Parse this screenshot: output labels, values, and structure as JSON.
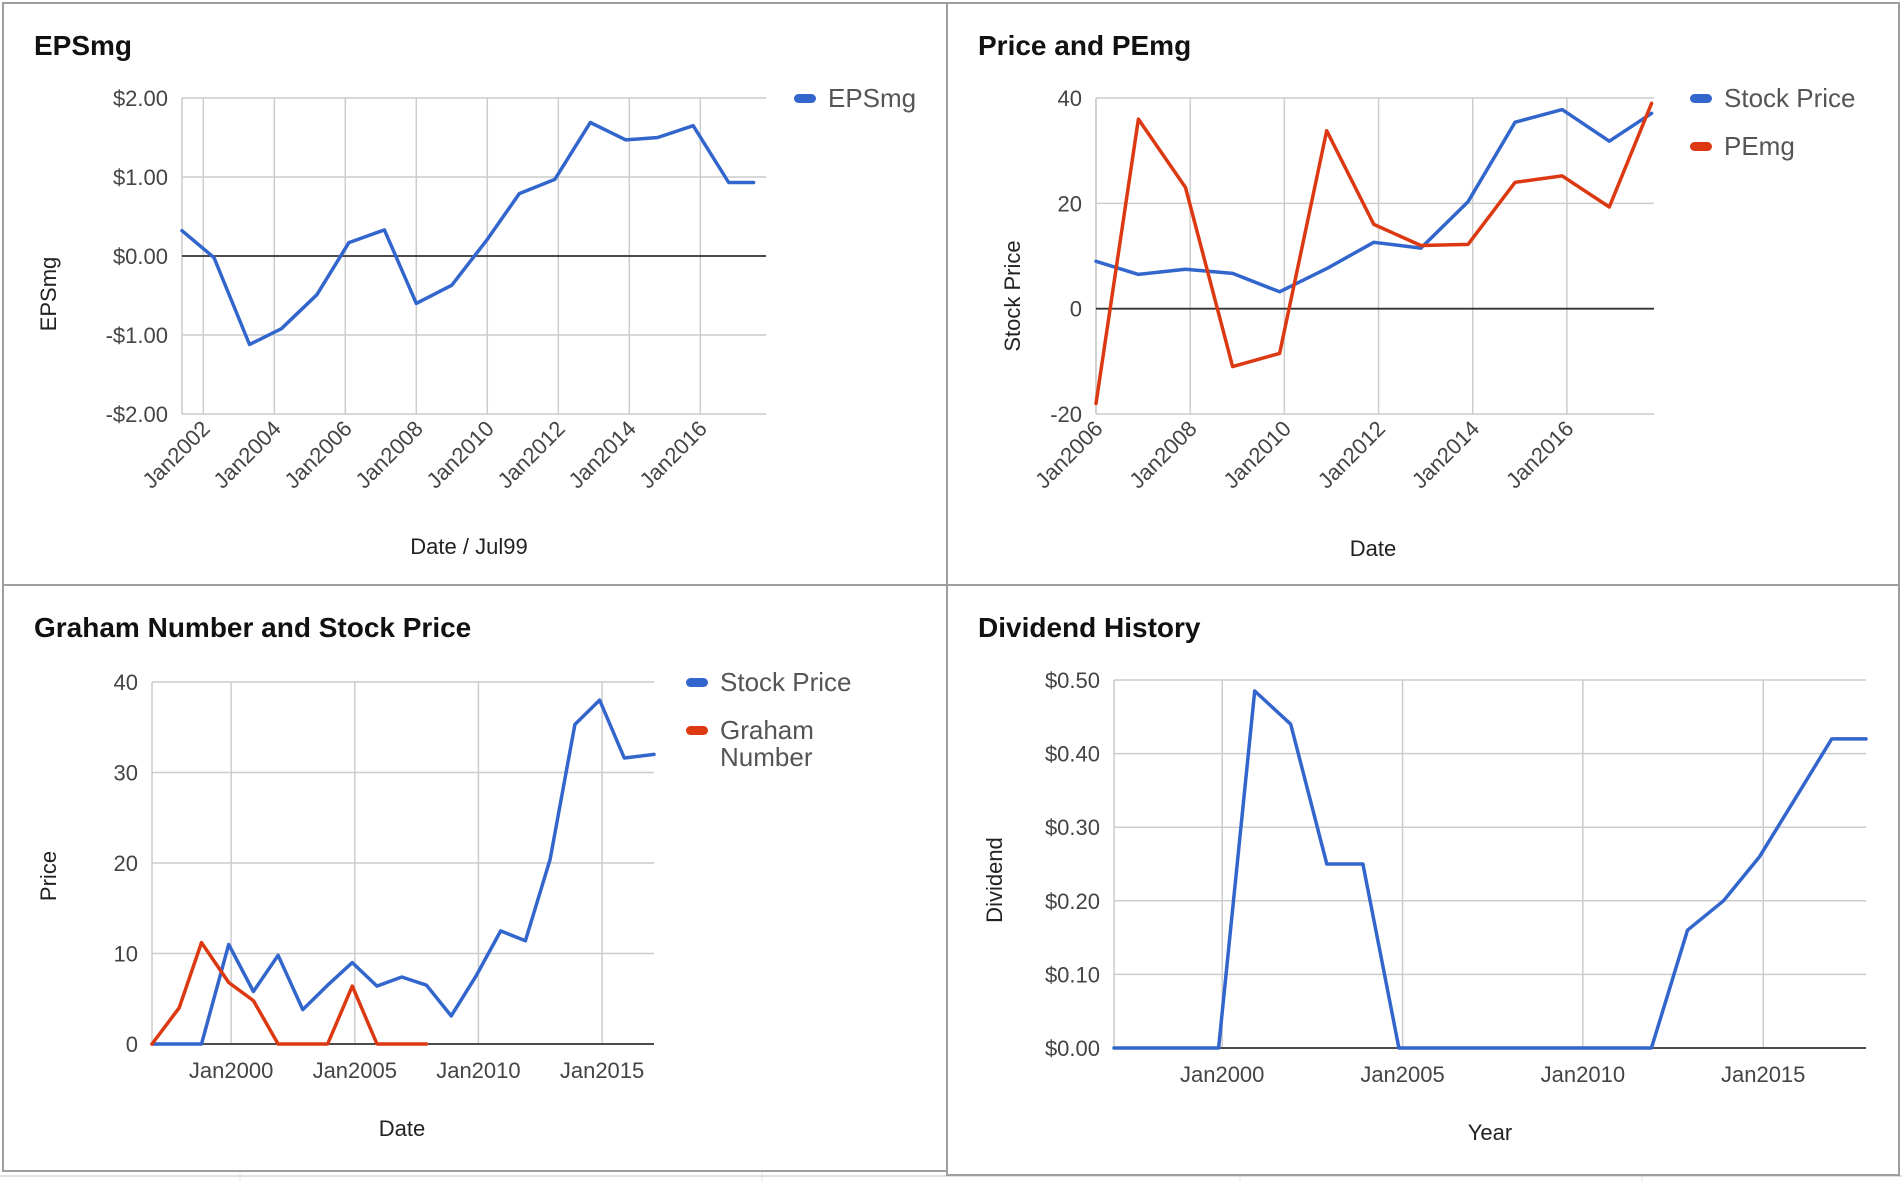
{
  "colors": {
    "blue": "#3366cc",
    "red": "#dc3912",
    "grid": "#cccccc",
    "zero": "#333333",
    "text": "#444444"
  },
  "chart_data": [
    {
      "type": "line",
      "title": "EPSmg",
      "xlabel": "Date / Jul99",
      "ylabel": "EPSmg",
      "ylim": [
        -2,
        2
      ],
      "yticks": [
        -2,
        -1,
        0,
        1,
        2
      ],
      "ytick_labels": [
        "-$2.00",
        "-$1.00",
        "$0.00",
        "$1.00",
        "$2.00"
      ],
      "xlim": [
        2001.4,
        2017.85
      ],
      "xticks": [
        2002,
        2004,
        2006,
        2008,
        2010,
        2012,
        2014,
        2016
      ],
      "xtick_labels": [
        "Jan2002",
        "Jan2004",
        "Jan2006",
        "Jan2008",
        "Jan2010",
        "Jan2012",
        "Jan2014",
        "Jan2016"
      ],
      "x_rotated": true,
      "legend_position": "right",
      "series": [
        {
          "name": "EPSmg",
          "color": "#3366cc",
          "x": [
            2001.4,
            2002.3,
            2003.3,
            2004.2,
            2005.2,
            2006.1,
            2007.1,
            2008.0,
            2009.0,
            2010.0,
            2010.9,
            2011.9,
            2012.9,
            2013.9,
            2014.8,
            2015.8,
            2016.8,
            2017.5
          ],
          "y": [
            0.32,
            -0.02,
            -1.12,
            -0.92,
            -0.49,
            0.17,
            0.33,
            -0.6,
            -0.37,
            0.21,
            0.79,
            0.97,
            1.69,
            1.47,
            1.5,
            1.65,
            0.93,
            0.93
          ]
        }
      ]
    },
    {
      "type": "line",
      "title": "Price and PEmg",
      "xlabel": "Date",
      "ylabel": "Stock Price",
      "ylim": [
        -20,
        40
      ],
      "yticks": [
        -20,
        0,
        20,
        40
      ],
      "ytick_labels": [
        "-20",
        "0",
        "20",
        "40"
      ],
      "xlim": [
        2006.0,
        2017.85
      ],
      "xticks": [
        2006,
        2008,
        2010,
        2012,
        2014,
        2016
      ],
      "xtick_labels": [
        "Jan2006",
        "Jan2008",
        "Jan2010",
        "Jan2012",
        "Jan2014",
        "Jan2016"
      ],
      "x_rotated": true,
      "legend_position": "right",
      "series": [
        {
          "name": "Stock Price",
          "color": "#3366cc",
          "x": [
            2006.0,
            2006.9,
            2007.9,
            2008.9,
            2009.9,
            2010.9,
            2011.9,
            2012.9,
            2013.9,
            2014.9,
            2015.9,
            2016.9,
            2017.8
          ],
          "y": [
            9.0,
            6.5,
            7.5,
            6.7,
            3.2,
            7.6,
            12.6,
            11.5,
            20.3,
            35.4,
            37.8,
            31.8,
            37.1
          ]
        },
        {
          "name": "PEmg",
          "color": "#dc3912",
          "x": [
            2006.0,
            2006.9,
            2007.9,
            2008.9,
            2009.9,
            2010.9,
            2011.9,
            2012.9,
            2013.9,
            2014.9,
            2015.9,
            2016.9,
            2017.8
          ],
          "y": [
            -18.0,
            36.0,
            23.0,
            -11.0,
            -8.5,
            33.8,
            16.0,
            12.0,
            12.2,
            24.0,
            25.2,
            19.3,
            39.0
          ]
        }
      ]
    },
    {
      "type": "line",
      "title": "Graham Number and Stock Price",
      "xlabel": "Date",
      "ylabel": "Price",
      "ylim": [
        0,
        40
      ],
      "yticks": [
        0,
        10,
        20,
        30,
        40
      ],
      "ytick_labels": [
        "0",
        "10",
        "20",
        "30",
        "40"
      ],
      "xlim": [
        1996.8,
        2017.1
      ],
      "xticks": [
        2000,
        2005,
        2010,
        2015
      ],
      "xtick_labels": [
        "Jan2000",
        "Jan2005",
        "Jan2010",
        "Jan2015"
      ],
      "x_rotated": false,
      "legend_position": "right",
      "series": [
        {
          "name": "Stock Price",
          "color": "#3366cc",
          "x": [
            1996.8,
            1998.8,
            1999.9,
            2000.9,
            2001.9,
            2002.9,
            2003.9,
            2004.9,
            2005.9,
            2006.9,
            2007.9,
            2008.9,
            2009.9,
            2010.9,
            2011.9,
            2012.9,
            2013.9,
            2014.9,
            2015.9,
            2017.1
          ],
          "y": [
            0,
            0,
            11.0,
            5.8,
            9.8,
            3.8,
            6.5,
            9.0,
            6.4,
            7.4,
            6.5,
            3.1,
            7.5,
            12.5,
            11.4,
            20.4,
            35.3,
            38.0,
            31.6,
            32.0
          ]
        },
        {
          "name": "Graham Number",
          "color": "#dc3912",
          "x": [
            1996.8,
            1997.9,
            1998.8,
            1999.9,
            2000.9,
            2001.9,
            2002.9,
            2003.9,
            2004.9,
            2005.9,
            2006.9,
            2007.9
          ],
          "y": [
            0,
            4.0,
            11.2,
            6.8,
            4.8,
            0,
            0,
            0,
            6.4,
            0,
            0,
            0
          ]
        }
      ]
    },
    {
      "type": "line",
      "title": "Dividend History",
      "xlabel": "Year",
      "ylabel": "Dividend",
      "ylim": [
        0,
        0.5
      ],
      "yticks": [
        0,
        0.1,
        0.2,
        0.3,
        0.4,
        0.5
      ],
      "ytick_labels": [
        "$0.00",
        "$0.10",
        "$0.20",
        "$0.30",
        "$0.40",
        "$0.50"
      ],
      "xlim": [
        1997.0,
        2017.85
      ],
      "xticks": [
        2000,
        2005,
        2010,
        2015
      ],
      "xtick_labels": [
        "Jan2000",
        "Jan2005",
        "Jan2010",
        "Jan2015"
      ],
      "x_rotated": false,
      "legend_position": "none",
      "series": [
        {
          "name": "",
          "color": "#3366cc",
          "x": [
            1997.0,
            1999.9,
            2000.9,
            2001.9,
            2002.9,
            2003.9,
            2004.9,
            2005.9,
            2006.9,
            2007.9,
            2008.9,
            2009.9,
            2010.9,
            2011.9,
            2012.9,
            2013.9,
            2014.9,
            2015.9,
            2016.9,
            2017.85
          ],
          "y": [
            0,
            0,
            0.485,
            0.44,
            0.25,
            0.25,
            0,
            0,
            0,
            0,
            0,
            0,
            0,
            0,
            0.16,
            0.2,
            0.26,
            0.34,
            0.42,
            0.42
          ]
        }
      ]
    }
  ]
}
